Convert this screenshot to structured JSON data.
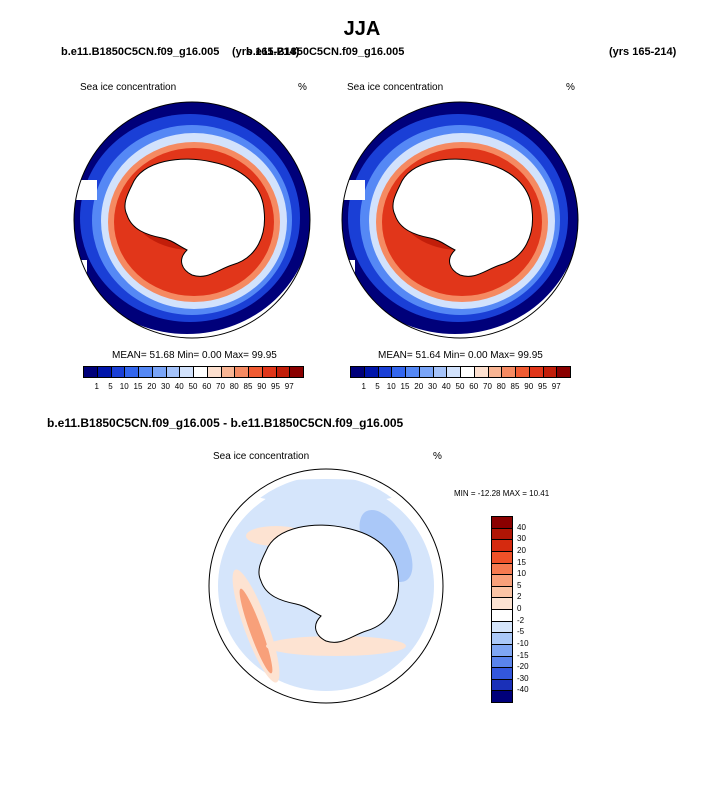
{
  "title": "JJA",
  "panel_left": {
    "case": "b.e11.B1850C5CN.f09_g16.005",
    "years": "(yrs 165-214)",
    "field": "Sea ice concentration",
    "units": "%",
    "stats": "MEAN= 51.68  Min=  0.00  Max= 99.95"
  },
  "panel_right": {
    "case": "b.e11.B1850C5CN.f09_g16.005",
    "years": "(yrs 165-214)",
    "field": "Sea ice concentration",
    "units": "%",
    "stats": "MEAN= 51.64  Min=  0.00  Max= 99.95"
  },
  "panel_diff": {
    "title": "b.e11.B1850C5CN.f09_g16.005 - b.e11.B1850C5CN.f09_g16.005",
    "field": "Sea ice concentration",
    "units": "%",
    "stats": "MIN = -12.28 MAX =  10.41"
  },
  "colorbar_main": {
    "labels": [
      "1",
      "5",
      "10",
      "15",
      "20",
      "30",
      "40",
      "50",
      "60",
      "70",
      "80",
      "85",
      "90",
      "95",
      "97"
    ],
    "colors": [
      "#00007a",
      "#0015aa",
      "#1a3fd6",
      "#3366ee",
      "#5588f5",
      "#7aa5f8",
      "#a5c3fa",
      "#d2e2fc",
      "#ffffff",
      "#fde0cf",
      "#f9b594",
      "#f58a62",
      "#f05b32",
      "#e1361a",
      "#c21e0a",
      "#8a0000"
    ]
  },
  "colorbar_diff": {
    "labels": [
      "40",
      "30",
      "20",
      "15",
      "10",
      "5",
      "2",
      "0",
      "-2",
      "-5",
      "-10",
      "-15",
      "-20",
      "-30",
      "-40"
    ],
    "colors": [
      "#8a0000",
      "#b01505",
      "#d52a0f",
      "#ef5128",
      "#f57a50",
      "#f8a07a",
      "#fbc4a5",
      "#fde3d2",
      "#ffffff",
      "#d5e5fb",
      "#aac8f8",
      "#7fa6f3",
      "#5a84ec",
      "#3357dd",
      "#1a30b8",
      "#00007a"
    ]
  }
}
